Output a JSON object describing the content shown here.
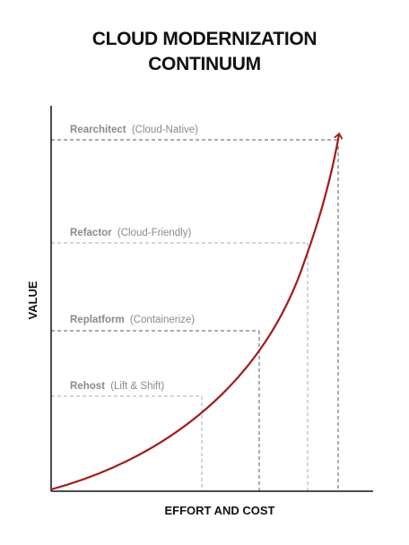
{
  "title": {
    "line1": "CLOUD MODERNIZATION",
    "line2": "CONTINUUM"
  },
  "axes": {
    "x_label": "EFFORT AND COST",
    "y_label": "VALUE"
  },
  "stages": [
    {
      "name": "Rehost",
      "detail": "(Lift & Shift)",
      "color": "#8fb3c7"
    },
    {
      "name": "Replatform",
      "detail": "(Containerize)",
      "color": "#5a5a5a"
    },
    {
      "name": "Refactor",
      "detail": "(Cloud-Friendly)",
      "color": "#8fb3c7"
    },
    {
      "name": "Rearchitect",
      "detail": "(Cloud-Native)",
      "color": "#5a5a5a"
    }
  ],
  "colors": {
    "curve": "#a31b1b",
    "axis": "#111111",
    "label_text": "#8a8a8a"
  }
}
